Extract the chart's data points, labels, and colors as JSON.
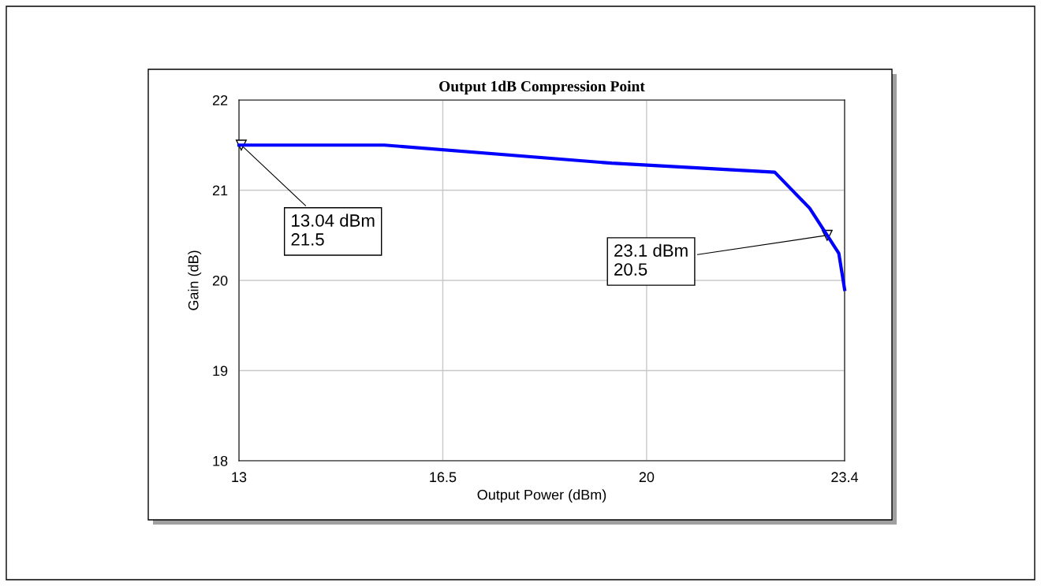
{
  "chart_data": {
    "type": "line",
    "title": "Output 1dB Compression Point",
    "xlabel": "Output Power (dBm)",
    "ylabel": "Gain (dB)",
    "x": [
      13,
      15.5,
      19.4,
      22.2,
      22.8,
      23.3,
      23.4
    ],
    "series": [
      {
        "color": "#0000ff",
        "values": [
          21.5,
          21.5,
          21.3,
          21.2,
          20.8,
          20.3,
          19.9
        ]
      }
    ],
    "xlim": [
      13,
      23.4
    ],
    "xticks": [
      13,
      16.5,
      20,
      23.4
    ],
    "ylim": [
      18,
      22
    ],
    "yticks": [
      18,
      19,
      20,
      21,
      22
    ],
    "grid": true,
    "annotations": [
      {
        "text": "13.04 dBm\n21.5",
        "x": 13.04,
        "y": 21.5
      },
      {
        "text": "23.1 dBm\n20.5",
        "x": 23.1,
        "y": 20.5
      }
    ]
  }
}
